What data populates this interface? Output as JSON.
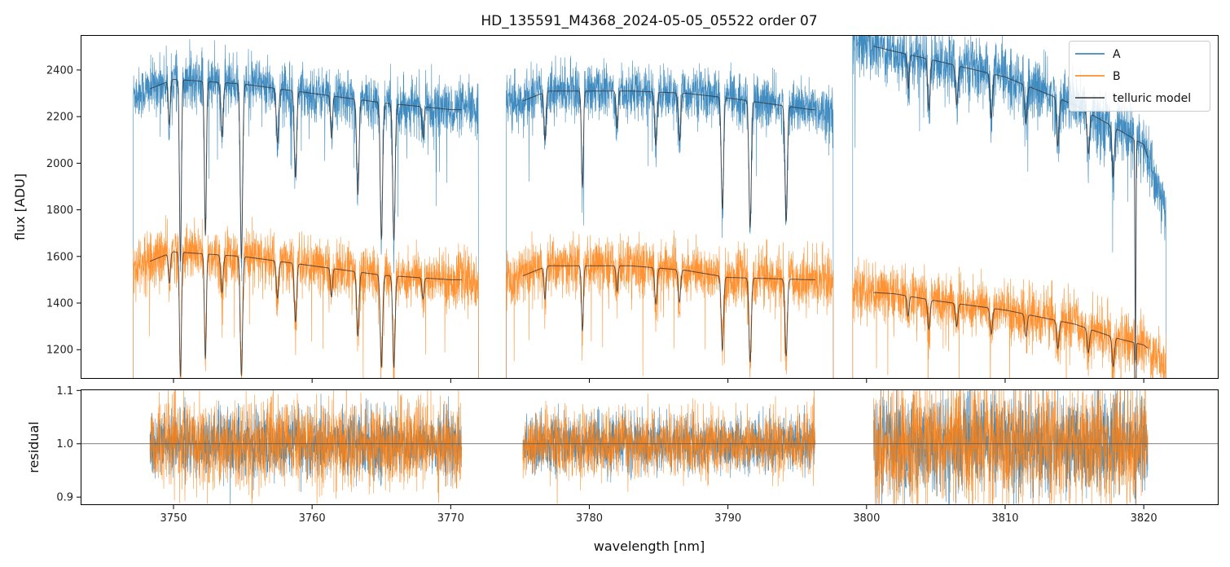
{
  "chart_data": {
    "type": "line",
    "title": "HD_135591_M4368_2024-05-05_05522  order 07",
    "xlabel": "wavelength [nm]",
    "xlim": [
      3743.3,
      3825.4
    ],
    "x_ticks": [
      3750,
      3760,
      3770,
      3780,
      3790,
      3800,
      3810,
      3820
    ],
    "x_tick_labels": [
      "3750",
      "3760",
      "3770",
      "3780",
      "3790",
      "3800",
      "3810",
      "3820"
    ],
    "legend": {
      "placement": "top-right",
      "entries": [
        {
          "label": "A",
          "color": "#1f77b4"
        },
        {
          "label": "B",
          "color": "#ff7f0e"
        },
        {
          "label": "telluric model",
          "color": "#333333"
        }
      ]
    },
    "panels": {
      "flux": {
        "ylabel": "flux [ADU]",
        "ylim": [
          1075,
          2550
        ],
        "y_ticks": [
          1200,
          1400,
          1600,
          1800,
          2000,
          2200,
          2400
        ],
        "y_tick_labels": [
          "1200",
          "1400",
          "1600",
          "1800",
          "2000",
          "2200",
          "2400"
        ]
      },
      "residual": {
        "ylabel": "residual",
        "ylim": [
          0.885,
          1.102
        ],
        "y_ticks": [
          0.9,
          1.0,
          1.1
        ],
        "y_tick_labels": [
          "0.9",
          "1.0",
          "1.1"
        ],
        "reference_line": 1.0
      }
    },
    "segments": [
      {
        "data_range": [
          3747.1,
          3772.0
        ],
        "model_range": [
          3748.3,
          3770.8
        ],
        "series_A": {
          "continuum": [
            [
              3747.5,
              2300
            ],
            [
              3750,
              2360
            ],
            [
              3755,
              2340
            ],
            [
              3760,
              2300
            ],
            [
              3765,
              2260
            ],
            [
              3770,
              2230
            ]
          ],
          "noise": 55
        },
        "series_B": {
          "continuum": [
            [
              3747.5,
              1560
            ],
            [
              3750,
              1620
            ],
            [
              3755,
              1600
            ],
            [
              3760,
              1560
            ],
            [
              3765,
              1520
            ],
            [
              3770,
              1500
            ]
          ],
          "noise": 60
        },
        "absorption": [
          {
            "x": 3749.7,
            "depth": 0.08,
            "width": 0.1
          },
          {
            "x": 3750.5,
            "depth": 0.33,
            "width": 0.1
          },
          {
            "x": 3752.3,
            "depth": 0.28,
            "width": 0.1
          },
          {
            "x": 3753.5,
            "depth": 0.1,
            "width": 0.12
          },
          {
            "x": 3754.9,
            "depth": 0.32,
            "width": 0.12
          },
          {
            "x": 3757.5,
            "depth": 0.1,
            "width": 0.12
          },
          {
            "x": 3758.8,
            "depth": 0.16,
            "width": 0.12
          },
          {
            "x": 3761.4,
            "depth": 0.08,
            "width": 0.1
          },
          {
            "x": 3763.3,
            "depth": 0.18,
            "width": 0.12
          },
          {
            "x": 3765.0,
            "depth": 0.26,
            "width": 0.12
          },
          {
            "x": 3765.9,
            "depth": 0.26,
            "width": 0.12
          },
          {
            "x": 3768.0,
            "depth": 0.06,
            "width": 0.1
          }
        ]
      },
      {
        "data_range": [
          3774.0,
          3797.6
        ],
        "model_range": [
          3775.2,
          3796.3
        ],
        "series_A": {
          "continuum": [
            [
              3774.5,
              2250
            ],
            [
              3777,
              2310
            ],
            [
              3783,
              2310
            ],
            [
              3787,
              2300
            ],
            [
              3790,
              2280
            ],
            [
              3796,
              2230
            ]
          ],
          "noise": 55
        },
        "series_B": {
          "continuum": [
            [
              3774.5,
              1500
            ],
            [
              3777,
              1560
            ],
            [
              3783,
              1560
            ],
            [
              3787,
              1540
            ],
            [
              3790,
              1510
            ],
            [
              3796,
              1500
            ]
          ],
          "noise": 60
        },
        "absorption": [
          {
            "x": 3776.8,
            "depth": 0.09,
            "width": 0.1
          },
          {
            "x": 3779.5,
            "depth": 0.18,
            "width": 0.1
          },
          {
            "x": 3782.0,
            "depth": 0.07,
            "width": 0.1
          },
          {
            "x": 3784.8,
            "depth": 0.1,
            "width": 0.12
          },
          {
            "x": 3786.5,
            "depth": 0.09,
            "width": 0.12
          },
          {
            "x": 3789.6,
            "depth": 0.21,
            "width": 0.12
          },
          {
            "x": 3791.6,
            "depth": 0.24,
            "width": 0.12
          },
          {
            "x": 3794.2,
            "depth": 0.22,
            "width": 0.12
          }
        ]
      },
      {
        "data_range": [
          3799.0,
          3821.6
        ],
        "model_range": [
          3800.5,
          3820.3
        ],
        "series_A": {
          "continuum": [
            [
              3799.2,
              2520
            ],
            [
              3802,
              2480
            ],
            [
              3805,
              2440
            ],
            [
              3810,
              2370
            ],
            [
              3815,
              2250
            ],
            [
              3818,
              2150
            ],
            [
              3820,
              2080
            ],
            [
              3821.5,
              1800
            ]
          ],
          "noise": 65
        },
        "series_B": {
          "continuum": [
            [
              3799.2,
              1450
            ],
            [
              3802,
              1440
            ],
            [
              3805,
              1410
            ],
            [
              3810,
              1370
            ],
            [
              3815,
              1310
            ],
            [
              3818,
              1250
            ],
            [
              3820,
              1220
            ],
            [
              3821.5,
              1150
            ]
          ],
          "noise": 60
        },
        "absorption": [
          {
            "x": 3803.0,
            "depth": 0.06,
            "width": 0.1
          },
          {
            "x": 3804.5,
            "depth": 0.09,
            "width": 0.12
          },
          {
            "x": 3806.5,
            "depth": 0.07,
            "width": 0.12
          },
          {
            "x": 3809.0,
            "depth": 0.08,
            "width": 0.12
          },
          {
            "x": 3811.5,
            "depth": 0.07,
            "width": 0.12
          },
          {
            "x": 3813.8,
            "depth": 0.09,
            "width": 0.12
          },
          {
            "x": 3816.0,
            "depth": 0.08,
            "width": 0.12
          },
          {
            "x": 3817.8,
            "depth": 0.1,
            "width": 0.12
          },
          {
            "x": 3819.4,
            "depth": 0.45,
            "width": 0.05
          }
        ]
      }
    ],
    "residual_noise": [
      {
        "x_range": [
          3748.3,
          3770.8
        ],
        "A": 0.03,
        "B": 0.04
      },
      {
        "x_range": [
          3775.2,
          3796.3
        ],
        "A": 0.025,
        "B": 0.03
      },
      {
        "x_range": [
          3800.5,
          3820.3
        ],
        "A": 0.045,
        "B": 0.055
      }
    ]
  }
}
